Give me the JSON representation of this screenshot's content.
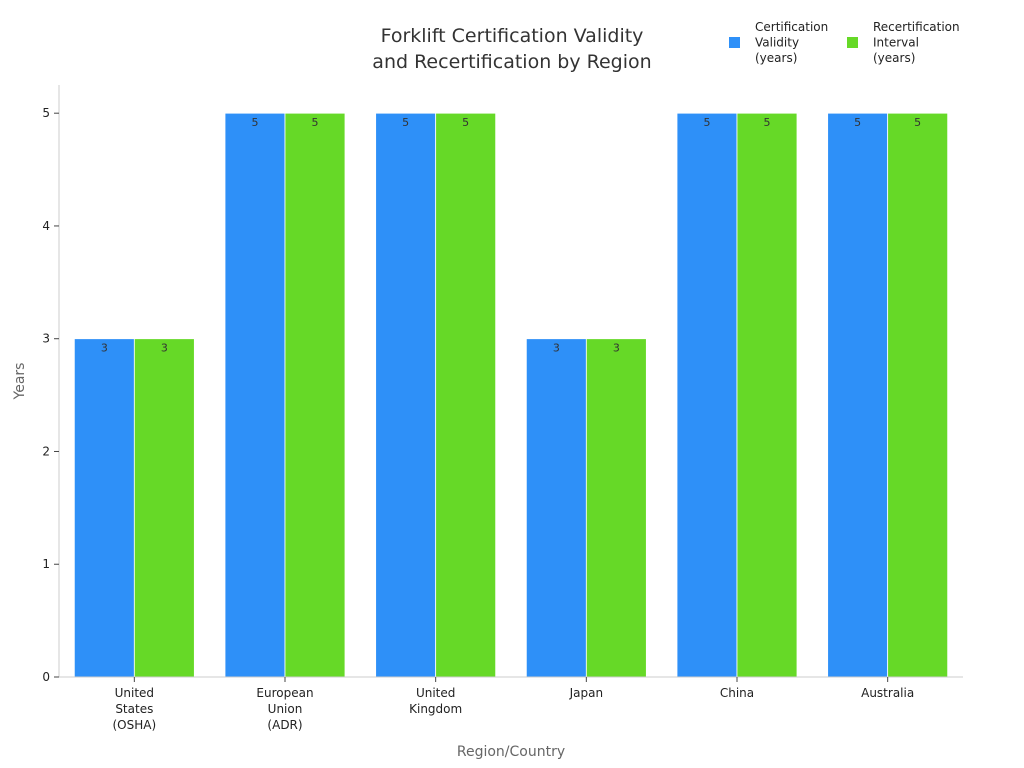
{
  "chart_data": {
    "type": "bar",
    "title": [
      "Forklift Certification Validity",
      "and Recertification by Region"
    ],
    "xlabel": "Region/Country",
    "ylabel": "Years",
    "ylim": [
      0,
      5.25
    ],
    "yticks": [
      0,
      1,
      2,
      3,
      4,
      5
    ],
    "grid": false,
    "legend_position": "top-right",
    "categories": [
      [
        "United",
        "States",
        "(OSHA)"
      ],
      [
        "European",
        "Union",
        "(ADR)"
      ],
      [
        "United",
        "Kingdom"
      ],
      [
        "Japan"
      ],
      [
        "China"
      ],
      [
        "Australia"
      ]
    ],
    "series": [
      {
        "name": [
          "Certification",
          "Validity",
          "(years)"
        ],
        "color": "#2e90f8",
        "values": [
          3,
          5,
          5,
          3,
          5,
          5
        ]
      },
      {
        "name": [
          "Recertification",
          "Interval",
          "(years)"
        ],
        "color": "#66d927",
        "values": [
          3,
          5,
          5,
          3,
          5,
          5
        ]
      }
    ]
  }
}
